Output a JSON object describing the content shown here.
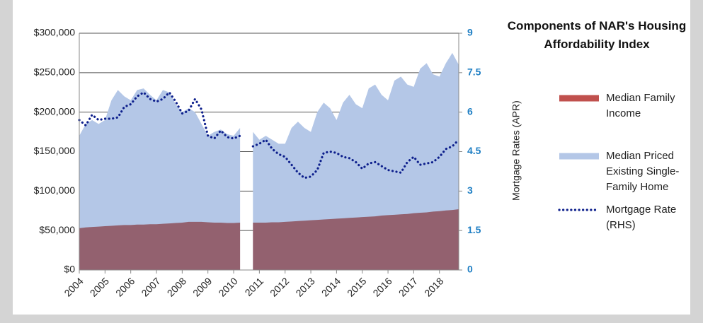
{
  "chart_data": {
    "type": "area_line",
    "title": "Components of NAR's Housing Affordability Index",
    "y2_label": "Mortgage Rates (APR)",
    "categories": [
      "2004",
      null,
      null,
      null,
      "2005",
      null,
      null,
      null,
      "2006",
      null,
      null,
      null,
      "2007",
      null,
      null,
      null,
      "2008",
      null,
      null,
      null,
      "2009",
      null,
      null,
      null,
      "2010",
      null,
      null,
      null,
      "2011",
      null,
      null,
      null,
      "2012",
      null,
      null,
      null,
      "2013",
      null,
      null,
      null,
      "2014",
      null,
      null,
      null,
      "2015",
      null,
      null,
      null,
      "2016",
      null,
      null,
      null,
      "2017",
      null,
      null,
      null,
      "2018",
      null,
      null,
      null
    ],
    "series": [
      {
        "name": "Median Family Income",
        "color": "#c0504d",
        "kind": "area",
        "values": [
          53000,
          54000,
          54500,
          55000,
          55500,
          56000,
          56500,
          57000,
          57000,
          57500,
          57500,
          58000,
          58000,
          58500,
          59000,
          59500,
          60000,
          61000,
          61000,
          61000,
          60500,
          60000,
          60000,
          59500,
          59500,
          60000,
          null,
          60000,
          60000,
          60000,
          60500,
          60500,
          61000,
          61500,
          62000,
          62500,
          63000,
          63500,
          64000,
          64500,
          65000,
          65500,
          66000,
          66500,
          67000,
          67500,
          68000,
          69000,
          69500,
          70000,
          70500,
          71000,
          72000,
          72500,
          73000,
          74000,
          74500,
          75500,
          76000,
          77000
        ]
      },
      {
        "name": "Median Priced Existing Single-Family Home",
        "color": "#b4c7e7",
        "kind": "area",
        "values": [
          170000,
          185000,
          190000,
          185000,
          190000,
          215000,
          228000,
          220000,
          215000,
          228000,
          230000,
          222000,
          215000,
          228000,
          225000,
          210000,
          200000,
          205000,
          200000,
          185000,
          170000,
          175000,
          178000,
          172000,
          170000,
          180000,
          null,
          175000,
          165000,
          170000,
          165000,
          160000,
          160000,
          180000,
          188000,
          180000,
          175000,
          200000,
          212000,
          205000,
          190000,
          212000,
          222000,
          210000,
          205000,
          230000,
          235000,
          222000,
          215000,
          240000,
          245000,
          235000,
          232000,
          255000,
          262000,
          248000,
          245000,
          262000,
          275000,
          260000
        ]
      },
      {
        "name": "Mortgage Rate (RHS)",
        "color": "#0d1f8c",
        "kind": "dotted-line",
        "axis": "y2",
        "values": [
          5.7,
          5.5,
          5.9,
          5.7,
          5.75,
          5.75,
          5.8,
          6.2,
          6.3,
          6.6,
          6.75,
          6.5,
          6.4,
          6.5,
          6.75,
          6.4,
          5.95,
          6.05,
          6.5,
          6.1,
          5.1,
          5.0,
          5.3,
          5.05,
          5.0,
          5.1,
          null,
          4.7,
          4.8,
          4.95,
          4.6,
          4.4,
          4.3,
          4.0,
          3.7,
          3.5,
          3.55,
          3.8,
          4.45,
          4.5,
          4.45,
          4.3,
          4.25,
          4.1,
          3.85,
          4.05,
          4.1,
          3.95,
          3.8,
          3.75,
          3.7,
          4.1,
          4.3,
          4.0,
          4.05,
          4.1,
          4.3,
          4.6,
          4.7,
          4.95
        ]
      }
    ],
    "ylim": [
      0,
      300000
    ],
    "yticks": [
      {
        "value": 0,
        "label": "$0"
      },
      {
        "value": 50000,
        "label": "$50,000"
      },
      {
        "value": 100000,
        "label": "$100,000"
      },
      {
        "value": 150000,
        "label": "$150,000"
      },
      {
        "value": 200000,
        "label": "$200,000"
      },
      {
        "value": 250000,
        "label": "$250,000"
      },
      {
        "value": 300000,
        "label": "$300,000"
      }
    ],
    "y2lim": [
      0,
      9
    ],
    "y2ticks": [
      0,
      1.5,
      3,
      4.5,
      6,
      7.5,
      9
    ],
    "grid": true
  }
}
